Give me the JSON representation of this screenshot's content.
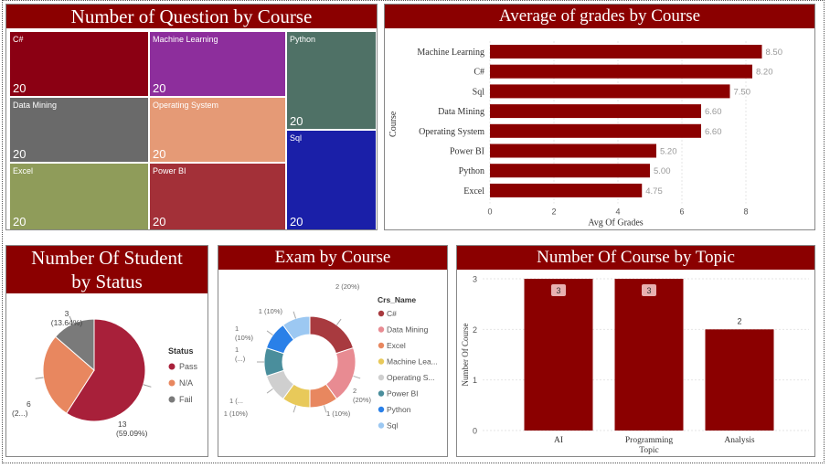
{
  "treemap": {
    "title": "Number of Question by Course",
    "cells": [
      {
        "label": "C#",
        "value": "20",
        "color": "#8b0013"
      },
      {
        "label": "Machine Learning",
        "value": "20",
        "color": "#8d2e9c"
      },
      {
        "label": "Python",
        "value": "20",
        "color": "#4f7166"
      },
      {
        "label": "Data Mining",
        "value": "20",
        "color": "#6a6a6a"
      },
      {
        "label": "Operating System",
        "value": "20",
        "color": "#e59a76"
      },
      {
        "label": "Sql",
        "value": "20",
        "color": "#1a1fa8"
      },
      {
        "label": "Excel",
        "value": "20",
        "color": "#8f9c5a"
      },
      {
        "label": "Power BI",
        "value": "20",
        "color": "#a33038"
      }
    ]
  },
  "grades": {
    "title": "Average of grades by Course",
    "bar_color": "#8b0000"
  },
  "status": {
    "title_line1": "Number Of Student",
    "title_line2": "by Status",
    "legend_title": "Status",
    "labels": [
      {
        "line1": "13",
        "line2": "(59.09%)"
      },
      {
        "line1": "6",
        "line2": "(2...)"
      },
      {
        "line1": "3",
        "line2": "(13.64%)"
      }
    ]
  },
  "exam": {
    "title": "Exam by Course",
    "legend_title": "Crs_Name",
    "labels": [
      {
        "line1": "2 (20%)",
        "line2": ""
      },
      {
        "line1": "2",
        "line2": "(20%)"
      },
      {
        "line1": "1 (10%)",
        "line2": ""
      },
      {
        "line1": "1 (10%)",
        "line2": ""
      },
      {
        "line1": "1 (...",
        "line2": ""
      },
      {
        "line1": "1",
        "line2": "(...)"
      },
      {
        "line1": "1",
        "line2": "(10%)"
      },
      {
        "line1": "1 (10%)",
        "line2": ""
      }
    ]
  },
  "topic": {
    "title": "Number Of Course by Topic",
    "bar_color": "#8b0000"
  },
  "chart_data": [
    {
      "type": "treemap",
      "title": "Number of Question by Course",
      "categories": [
        "C#",
        "Machine Learning",
        "Python",
        "Data Mining",
        "Operating System",
        "Sql",
        "Excel",
        "Power BI"
      ],
      "values": [
        20,
        20,
        20,
        20,
        20,
        20,
        20,
        20
      ]
    },
    {
      "type": "bar",
      "orientation": "horizontal",
      "title": "Average of grades by Course",
      "categories": [
        "Machine Learning",
        "C#",
        "Sql",
        "Data Mining",
        "Operating System",
        "Power BI",
        "Python",
        "Excel"
      ],
      "values": [
        8.5,
        8.2,
        7.5,
        6.6,
        6.6,
        5.2,
        5.0,
        4.75
      ],
      "value_labels": [
        "8.50",
        "8.20",
        "7.50",
        "6.60",
        "6.60",
        "5.20",
        "5.00",
        "4.75"
      ],
      "xlabel": "Avg Of Grades",
      "ylabel": "Course",
      "xlim": [
        0,
        9
      ],
      "xticks": [
        "0",
        "2",
        "4",
        "6",
        "8"
      ]
    },
    {
      "type": "pie",
      "title": "Number Of Student by Status",
      "categories": [
        "Pass",
        "N/A",
        "Fail"
      ],
      "values": [
        13,
        6,
        3
      ],
      "colors": [
        "#a8203a",
        "#e8875f",
        "#7a7a7a"
      ]
    },
    {
      "type": "pie",
      "subtype": "donut",
      "title": "Exam by Course",
      "categories": [
        "C#",
        "Data Mining",
        "Excel",
        "Machine Lea...",
        "Operating S...",
        "Power BI",
        "Python",
        "Sql"
      ],
      "values": [
        2,
        2,
        1,
        1,
        1,
        1,
        1,
        1
      ],
      "colors": [
        "#a83a3f",
        "#e88b92",
        "#e8875f",
        "#e8c95a",
        "#cfcfcf",
        "#4a8e9c",
        "#2a80e8",
        "#9cc8f2"
      ]
    },
    {
      "type": "bar",
      "title": "Number Of Course by Topic",
      "categories": [
        "AI",
        "Programming Topic",
        "Analysis"
      ],
      "values": [
        3,
        3,
        2
      ],
      "ylabel": "Number Of Course",
      "ylim": [
        0,
        3
      ],
      "yticks": [
        "0",
        "1",
        "2",
        "3"
      ]
    }
  ]
}
